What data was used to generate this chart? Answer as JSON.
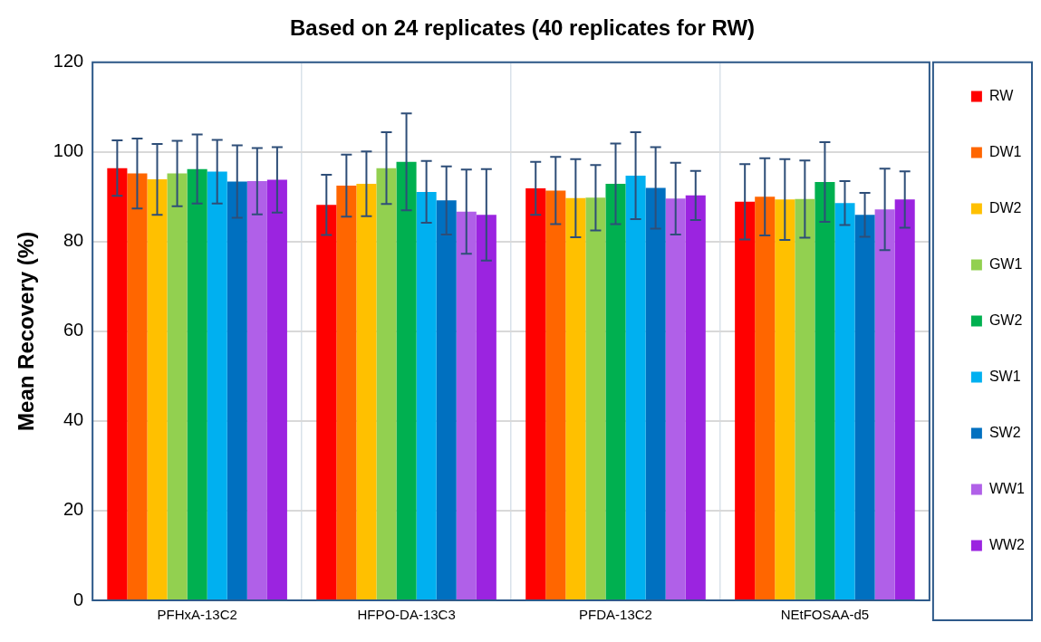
{
  "chart_data": {
    "type": "bar",
    "title": "Based on 24 replicates (40 replicates for RW)",
    "ylabel": "Mean Recovery (%)",
    "categories": [
      "PFHxA-13C2",
      "HFPO-DA-13C3",
      "PFDA-13C2",
      "NEtFOSAA-d5"
    ],
    "ylim": [
      0,
      120
    ],
    "yticks": [
      0,
      20,
      40,
      60,
      80,
      100,
      120
    ],
    "grid": true,
    "legend": "right",
    "series": [
      {
        "name": "RW",
        "color": "#ff0000",
        "values": [
          96.4,
          88.2,
          91.9,
          88.9
        ],
        "errors": [
          6.2,
          6.7,
          5.9,
          8.4
        ]
      },
      {
        "name": "DW1",
        "color": "#ff6600",
        "values": [
          95.2,
          92.5,
          91.4,
          90.0
        ],
        "errors": [
          7.8,
          6.9,
          7.5,
          8.6
        ]
      },
      {
        "name": "DW2",
        "color": "#ffc000",
        "values": [
          93.9,
          92.9,
          89.7,
          89.4
        ],
        "errors": [
          7.9,
          7.2,
          8.7,
          9.0
        ]
      },
      {
        "name": "GW1",
        "color": "#92d050",
        "values": [
          95.2,
          96.4,
          89.8,
          89.5
        ],
        "errors": [
          7.3,
          8.0,
          7.3,
          8.6
        ]
      },
      {
        "name": "GW2",
        "color": "#00b050",
        "values": [
          96.2,
          97.8,
          92.9,
          93.3
        ],
        "errors": [
          7.7,
          10.8,
          9.0,
          8.9
        ]
      },
      {
        "name": "SW1",
        "color": "#00b0f0",
        "values": [
          95.6,
          91.1,
          94.7,
          88.6
        ],
        "errors": [
          7.1,
          6.9,
          9.7,
          4.9
        ]
      },
      {
        "name": "SW2",
        "color": "#0070c0",
        "values": [
          93.4,
          89.2,
          92.0,
          86.0
        ],
        "errors": [
          8.1,
          7.6,
          9.1,
          4.9
        ]
      },
      {
        "name": "WW1",
        "color": "#b060e8",
        "values": [
          93.5,
          86.7,
          89.6,
          87.2
        ],
        "errors": [
          7.4,
          9.4,
          8.0,
          9.1
        ]
      },
      {
        "name": "WW2",
        "color": "#9b24e0",
        "values": [
          93.8,
          86.0,
          90.3,
          89.4
        ],
        "errors": [
          7.3,
          10.2,
          5.5,
          6.3
        ]
      }
    ]
  }
}
